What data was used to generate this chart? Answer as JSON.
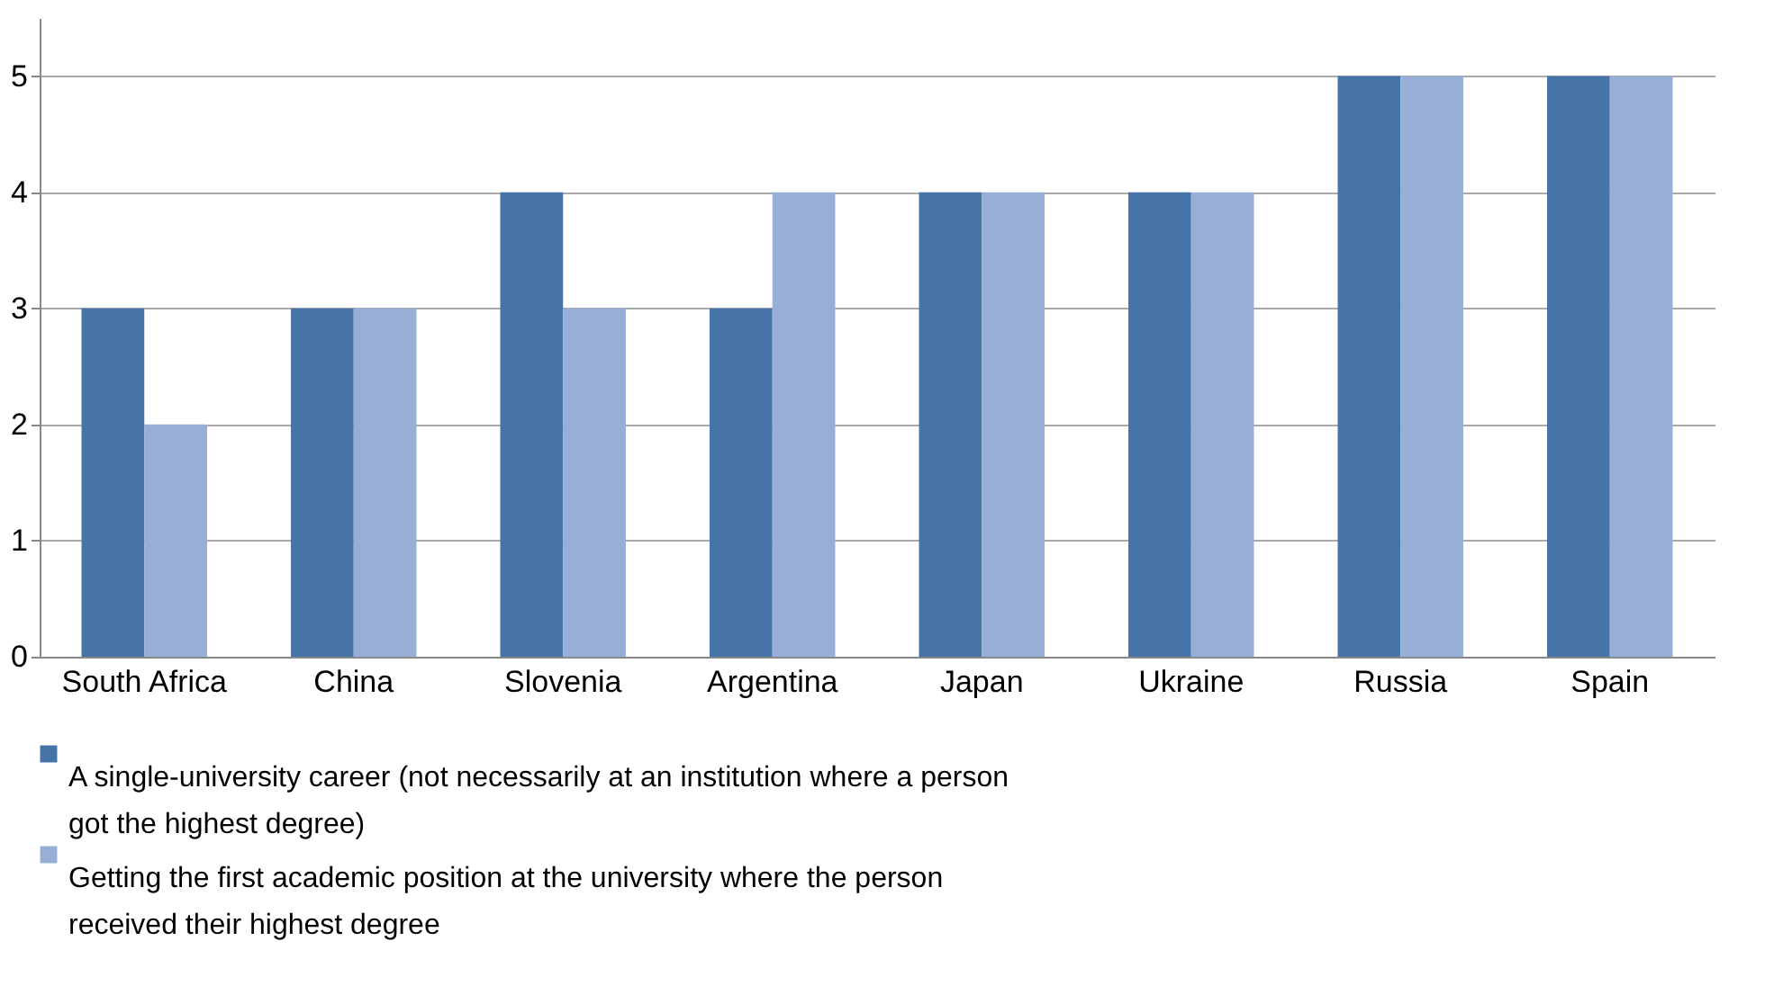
{
  "chart_data": {
    "type": "bar",
    "categories": [
      "South Africa",
      "China",
      "Slovenia",
      "Argentina",
      "Japan",
      "Ukraine",
      "Russia",
      "Spain"
    ],
    "series": [
      {
        "name": "A single-university career  (not necessarily at an institution where a person got the highest degree)",
        "color": "#4673a8",
        "values": [
          3,
          3,
          4,
          3,
          4,
          4,
          5,
          5
        ]
      },
      {
        "name": "Getting the first academic position at the university where the person received their highest degree",
        "color": "#97afd6",
        "values": [
          2,
          3,
          3,
          4,
          4,
          4,
          5,
          5
        ]
      }
    ],
    "ylim": [
      0,
      5.5
    ],
    "yticks": [
      0,
      1,
      2,
      3,
      4,
      5
    ],
    "grid": "y",
    "legend": "bottom"
  }
}
